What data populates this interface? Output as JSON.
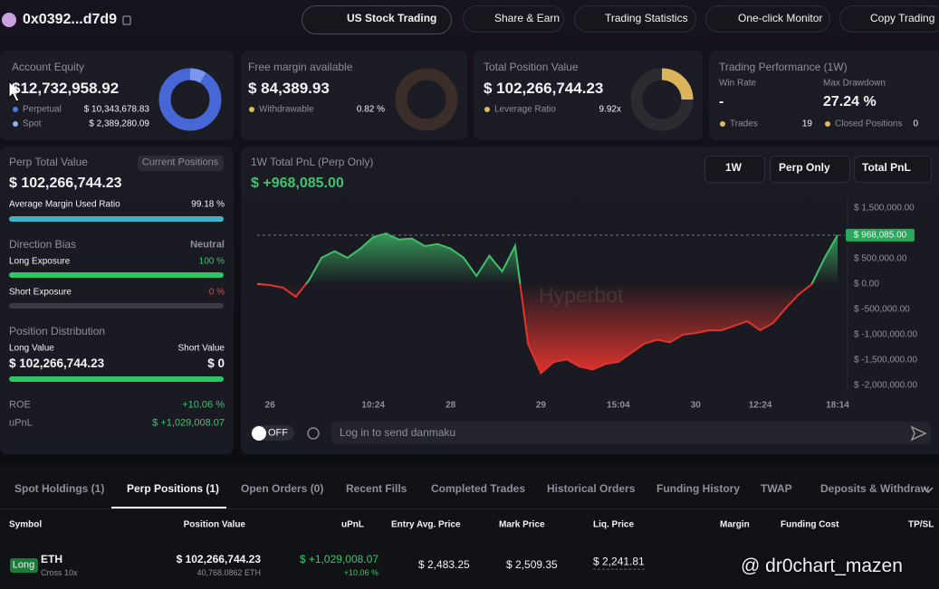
{
  "header": {
    "account": "0x0392...d7d9",
    "buttons": [
      "US Stock Trading",
      "Share & Earn",
      "Trading Statistics",
      "One-click Monitor",
      "Copy Trading"
    ]
  },
  "cards": {
    "account_equity": {
      "label": "Account Equity",
      "value": "$12,732,958.92",
      "rows": [
        [
          "Perpetual",
          "$ 10,343,678.83"
        ],
        [
          "Spot",
          "$ 2,389,280.09"
        ]
      ]
    },
    "free_margin": {
      "label": "Free margin available",
      "value": "$ 84,389.93",
      "rows": [
        [
          "Withdrawable",
          "0.82 %"
        ]
      ]
    },
    "total_position": {
      "label": "Total Position Value",
      "value": "$ 102,266,744.23",
      "rows": [
        [
          "Leverage Ratio",
          "9.92x"
        ]
      ]
    },
    "performance": {
      "label": "Trading Performance (1W)",
      "win_rate_label": "Win Rate",
      "win_rate": "-",
      "drawdown_label": "Max Drawdown",
      "drawdown": "27.24 %",
      "trades_label": "Trades",
      "trades": "19",
      "closed_label": "Closed Positions",
      "closed": "0"
    }
  },
  "perp_panel": {
    "label": "Perp Total Value",
    "badge": "Current Positions",
    "value": "$ 102,266,744.23",
    "margin_label": "Average Margin Used Ratio",
    "margin_ratio": "99.18 %",
    "bias_label": "Direction Bias",
    "bias": "Neutral",
    "long_label": "Long Exposure",
    "long": "100 %",
    "short_label": "Short Exposure",
    "short": "0 %",
    "dist_label": "Position Distribution",
    "long_value_label": "Long Value",
    "short_value_label": "Short Value",
    "long_value": "$ 102,266,744.23",
    "short_value": "$ 0",
    "roe_label": "ROE",
    "roe": "+10.06 %",
    "upnl_label": "uPnL",
    "upnl": "$ +1,029,008.07"
  },
  "pnl_chart": {
    "type": "line",
    "title": "1W Total PnL (Perp Only)",
    "headline": "$ +968,085.00",
    "controls": [
      "1W",
      "Perp Only",
      "Total PnL"
    ],
    "watermark": "Hyperbot",
    "categories": [
      null,
      "26",
      null,
      null,
      null,
      null,
      null,
      null,
      null,
      "10:24",
      null,
      null,
      null,
      null,
      null,
      "28",
      null,
      null,
      null,
      null,
      null,
      null,
      "29",
      null,
      null,
      null,
      null,
      null,
      "15:04",
      null,
      null,
      null,
      null,
      null,
      "30",
      null,
      null,
      null,
      null,
      "12:24",
      null,
      null,
      null,
      null,
      null,
      "18:14"
    ],
    "values": [
      0,
      -20000,
      -70000,
      -250000,
      70000,
      520000,
      650000,
      520000,
      700000,
      930000,
      1000000,
      880000,
      900000,
      750000,
      790000,
      700000,
      520000,
      160000,
      560000,
      250000,
      760000,
      -1180000,
      -1760000,
      -1540000,
      -1490000,
      -1630000,
      -1690000,
      -1580000,
      -1540000,
      -1360000,
      -1180000,
      -1100000,
      -1150000,
      -1000000,
      -970000,
      -915000,
      -915000,
      -825000,
      -735000,
      -915000,
      -770000,
      -470000,
      -200000,
      0,
      520000,
      968085
    ],
    "up_color": "#3fbf6a",
    "down_color": "#e0342e",
    "ylim": [
      -2200000,
      1770000
    ],
    "yticks": [
      {
        "value": 1500000,
        "label": "$ 1,500,000.00"
      },
      {
        "value": 500000,
        "label": "$ 500,000.00"
      },
      {
        "value": 0,
        "label": "$ 0.00"
      },
      {
        "value": -500000,
        "label": "$ -500,000.00"
      },
      {
        "value": -1000000,
        "label": "$ -1,000,000.00"
      },
      {
        "value": -1500000,
        "label": "$ -1,500,000.00"
      },
      {
        "value": -2000000,
        "label": "$ -2,000,000.00"
      }
    ],
    "marker": {
      "value": 968085,
      "label": "$ 968,085.00"
    }
  },
  "danmaku": {
    "toggle": "OFF",
    "placeholder": "Log in to send danmaku"
  },
  "tabs": [
    "Spot Holdings (1)",
    "Perp Positions (1)",
    "Open Orders (0)",
    "Recent Fills",
    "Completed Trades",
    "Historical Orders",
    "Funding History",
    "TWAP",
    "Deposits & Withdraw"
  ],
  "active_tab": 1,
  "table": {
    "headers": [
      "Symbol",
      "Position Value",
      "uPnL",
      "Entry Avg. Price",
      "Mark Price",
      "Liq. Price",
      "Margin",
      "Funding Cost",
      "TP/SL"
    ],
    "row": {
      "side": "Long",
      "symbol": "ETH",
      "mode": "Cross 10x",
      "position_value": "$ 102,266,744.23",
      "size": "40,768.0862 ETH",
      "upnl": "$ +1,029,008.07",
      "roe": "+10.06 %",
      "entry": "$ 2,483.25",
      "mark": "$ 2,509.35",
      "liq": "$ 2,241.81"
    }
  },
  "watermark": "@ dr0chart_mazen"
}
